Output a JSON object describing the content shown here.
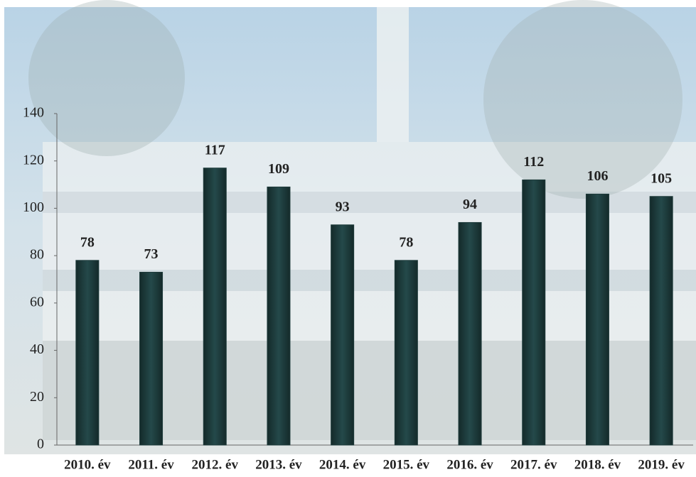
{
  "chart_data": {
    "type": "bar",
    "categories": [
      "2010. év",
      "2011. év",
      "2012. év",
      "2013. év",
      "2014. év",
      "2015. év",
      "2016. év",
      "2017. év",
      "2018. év",
      "2019. év"
    ],
    "values": [
      78,
      73,
      117,
      109,
      93,
      78,
      94,
      112,
      106,
      105
    ],
    "color": "#1e3b3b",
    "ylim": [
      0,
      140
    ],
    "yticks": [
      0,
      20,
      40,
      60,
      80,
      100,
      120,
      140
    ],
    "grid": false
  }
}
